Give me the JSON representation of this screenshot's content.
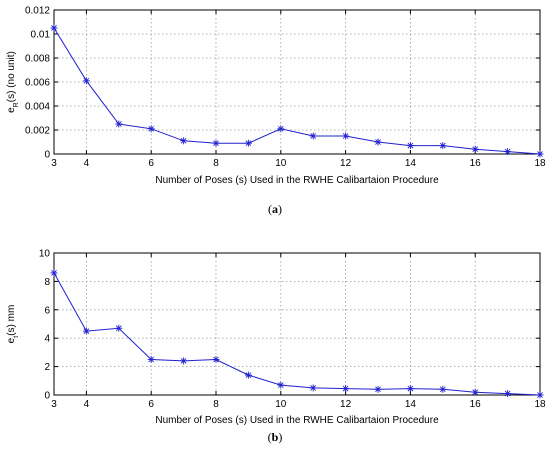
{
  "colors": {
    "series": "#2020d0",
    "grid": "#9a9a9a",
    "axis": "#000000"
  },
  "chart_data": [
    {
      "type": "line",
      "xlabel": "Number of Poses (s) Used in the RWHE Calibartaion Procedure",
      "ylabel": {
        "main": "e",
        "sub": "R",
        "rest": "(s) (no unit)"
      },
      "xlim": [
        3,
        18
      ],
      "ylim": [
        0,
        0.012
      ],
      "xticks": [
        3,
        4,
        6,
        8,
        10,
        12,
        14,
        16,
        18
      ],
      "yticks": [
        0,
        0.002,
        0.004,
        0.006,
        0.008,
        0.01,
        0.012
      ],
      "ytick_labels": [
        "0",
        "0.002",
        "0.004",
        "0.006",
        "0.008",
        "0.01",
        "0.012"
      ],
      "grid": true,
      "marker": "asterisk",
      "x": [
        3,
        4,
        5,
        6,
        7,
        8,
        9,
        10,
        11,
        12,
        13,
        14,
        15,
        16,
        17,
        18
      ],
      "values": [
        0.0105,
        0.0061,
        0.0025,
        0.0021,
        0.0011,
        0.0009,
        0.0009,
        0.0021,
        0.0015,
        0.0015,
        0.001,
        0.0007,
        0.0007,
        0.0004,
        0.0002,
        0.0
      ],
      "caption": {
        "open": "(",
        "label": "a",
        "close": ")"
      }
    },
    {
      "type": "line",
      "xlabel": "Number of Poses (s) Used in the RWHE Calibartaion Procedure",
      "ylabel": {
        "main": "e",
        "sub": "t",
        "rest": "(s) mm"
      },
      "xlim": [
        3,
        18
      ],
      "ylim": [
        0,
        10
      ],
      "xticks": [
        3,
        4,
        6,
        8,
        10,
        12,
        14,
        16,
        18
      ],
      "yticks": [
        0,
        2,
        4,
        6,
        8,
        10
      ],
      "ytick_labels": [
        "0",
        "2",
        "4",
        "6",
        "8",
        "10"
      ],
      "grid": true,
      "marker": "asterisk",
      "x": [
        3,
        4,
        5,
        6,
        7,
        8,
        9,
        10,
        11,
        12,
        13,
        14,
        15,
        16,
        17,
        18
      ],
      "values": [
        8.6,
        4.5,
        4.7,
        2.5,
        2.4,
        2.5,
        1.4,
        0.7,
        0.5,
        0.45,
        0.4,
        0.45,
        0.4,
        0.2,
        0.1,
        0.0
      ],
      "caption": {
        "open": "(",
        "label": "b",
        "close": ")"
      }
    }
  ]
}
